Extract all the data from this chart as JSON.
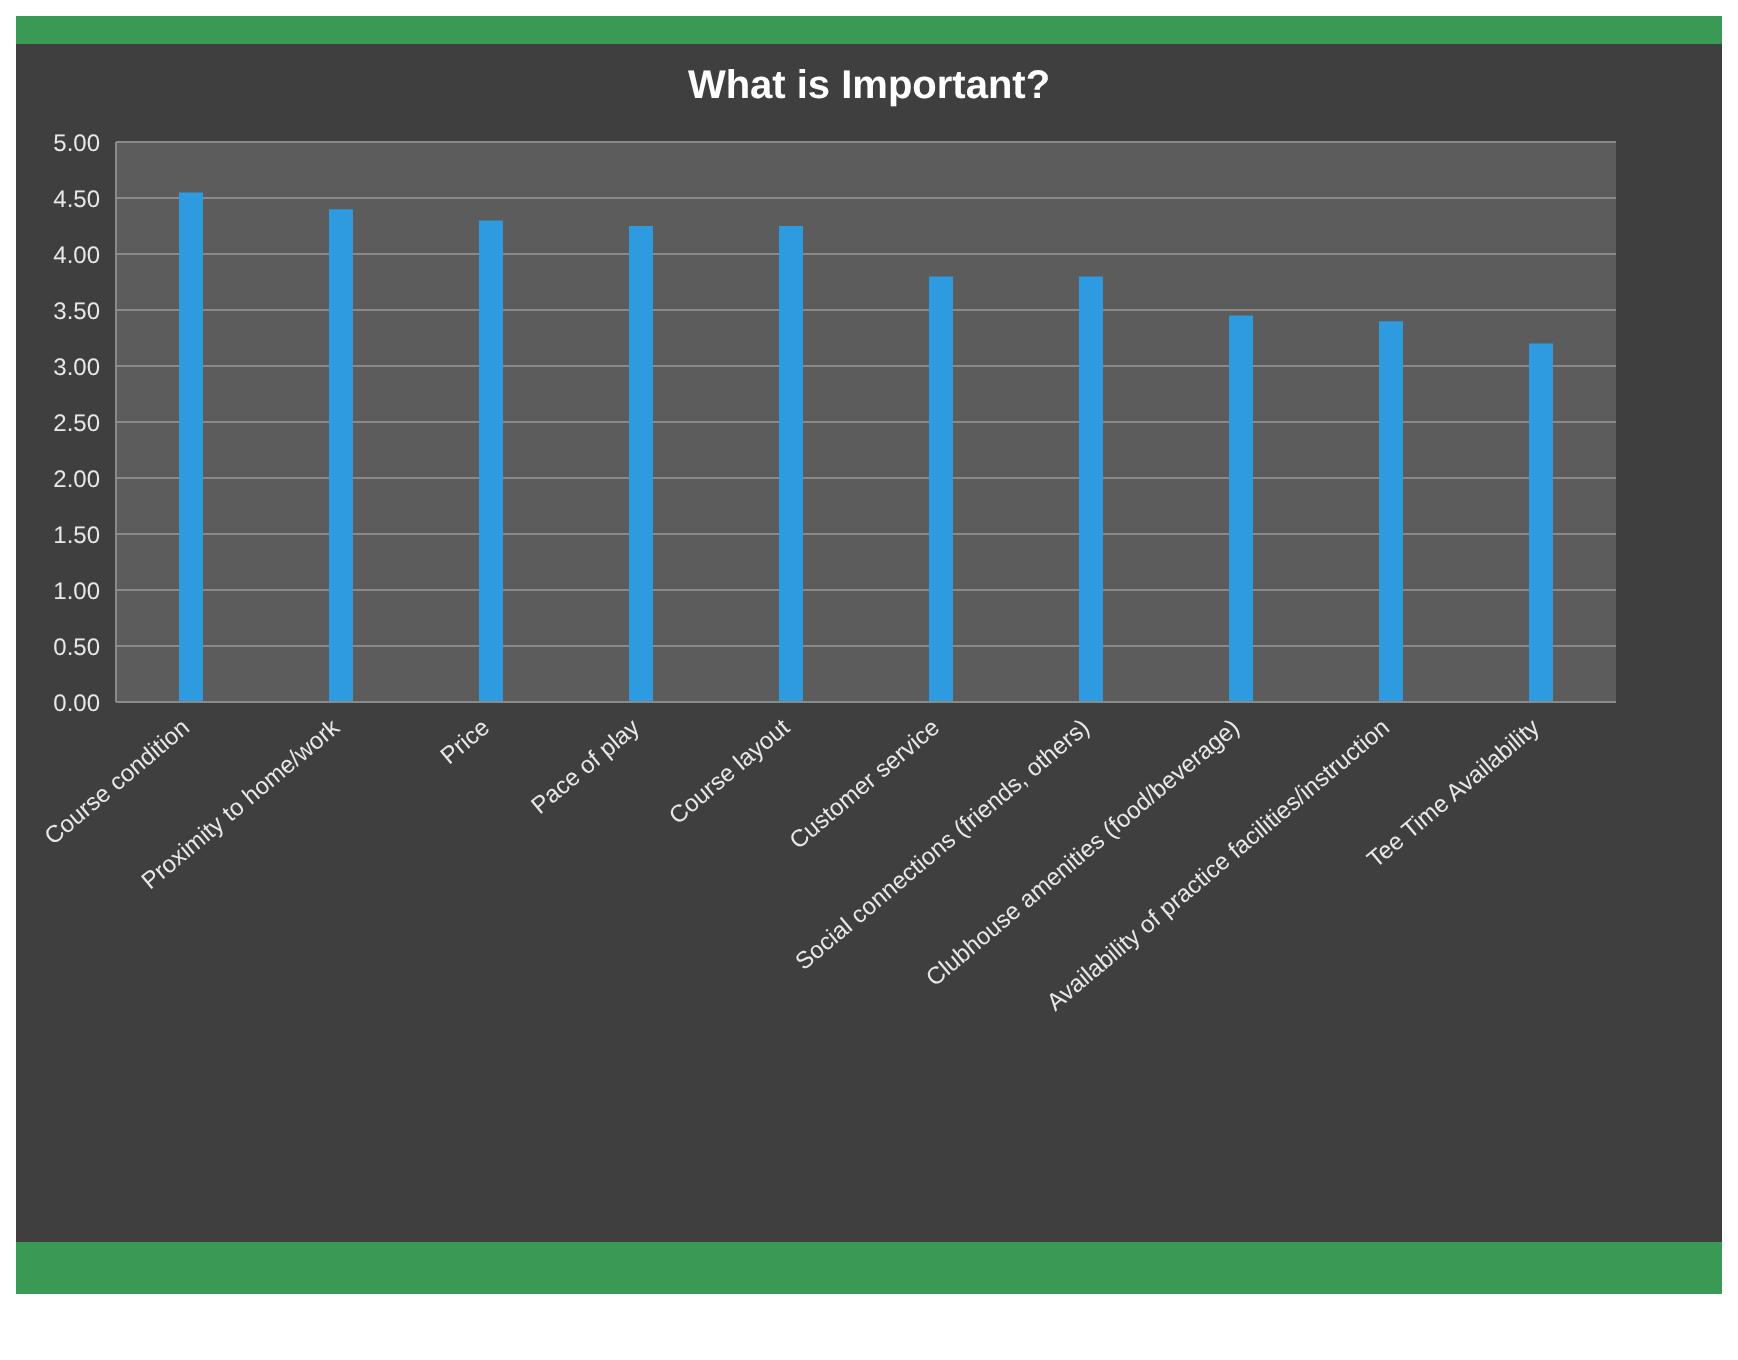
{
  "chart_data": {
    "type": "bar",
    "title": "What is Important?",
    "categories": [
      "Course condition",
      "Proximity to home/work",
      "Price",
      "Pace of play",
      "Course layout",
      "Customer service",
      "Social connections (friends, others)",
      "Clubhouse amenities (food/beverage)",
      "Availability of practice facilities/instruction",
      "Tee Time Availability"
    ],
    "values": [
      4.55,
      4.4,
      4.3,
      4.25,
      4.25,
      3.8,
      3.8,
      3.45,
      3.4,
      3.2
    ],
    "color": "#2e9be0",
    "ylim": [
      0,
      5
    ],
    "yticks": [
      {
        "value": 0,
        "label": "0.00"
      },
      {
        "value": 0.5,
        "label": "0.50"
      },
      {
        "value": 1,
        "label": "1.00"
      },
      {
        "value": 1.5,
        "label": "1.50"
      },
      {
        "value": 2,
        "label": "2.00"
      },
      {
        "value": 2.5,
        "label": "2.50"
      },
      {
        "value": 3,
        "label": "3.00"
      },
      {
        "value": 3.5,
        "label": "3.50"
      },
      {
        "value": 4,
        "label": "4.00"
      },
      {
        "value": 4.5,
        "label": "4.50"
      },
      {
        "value": 5,
        "label": "5.00"
      }
    ],
    "grid": "y"
  }
}
